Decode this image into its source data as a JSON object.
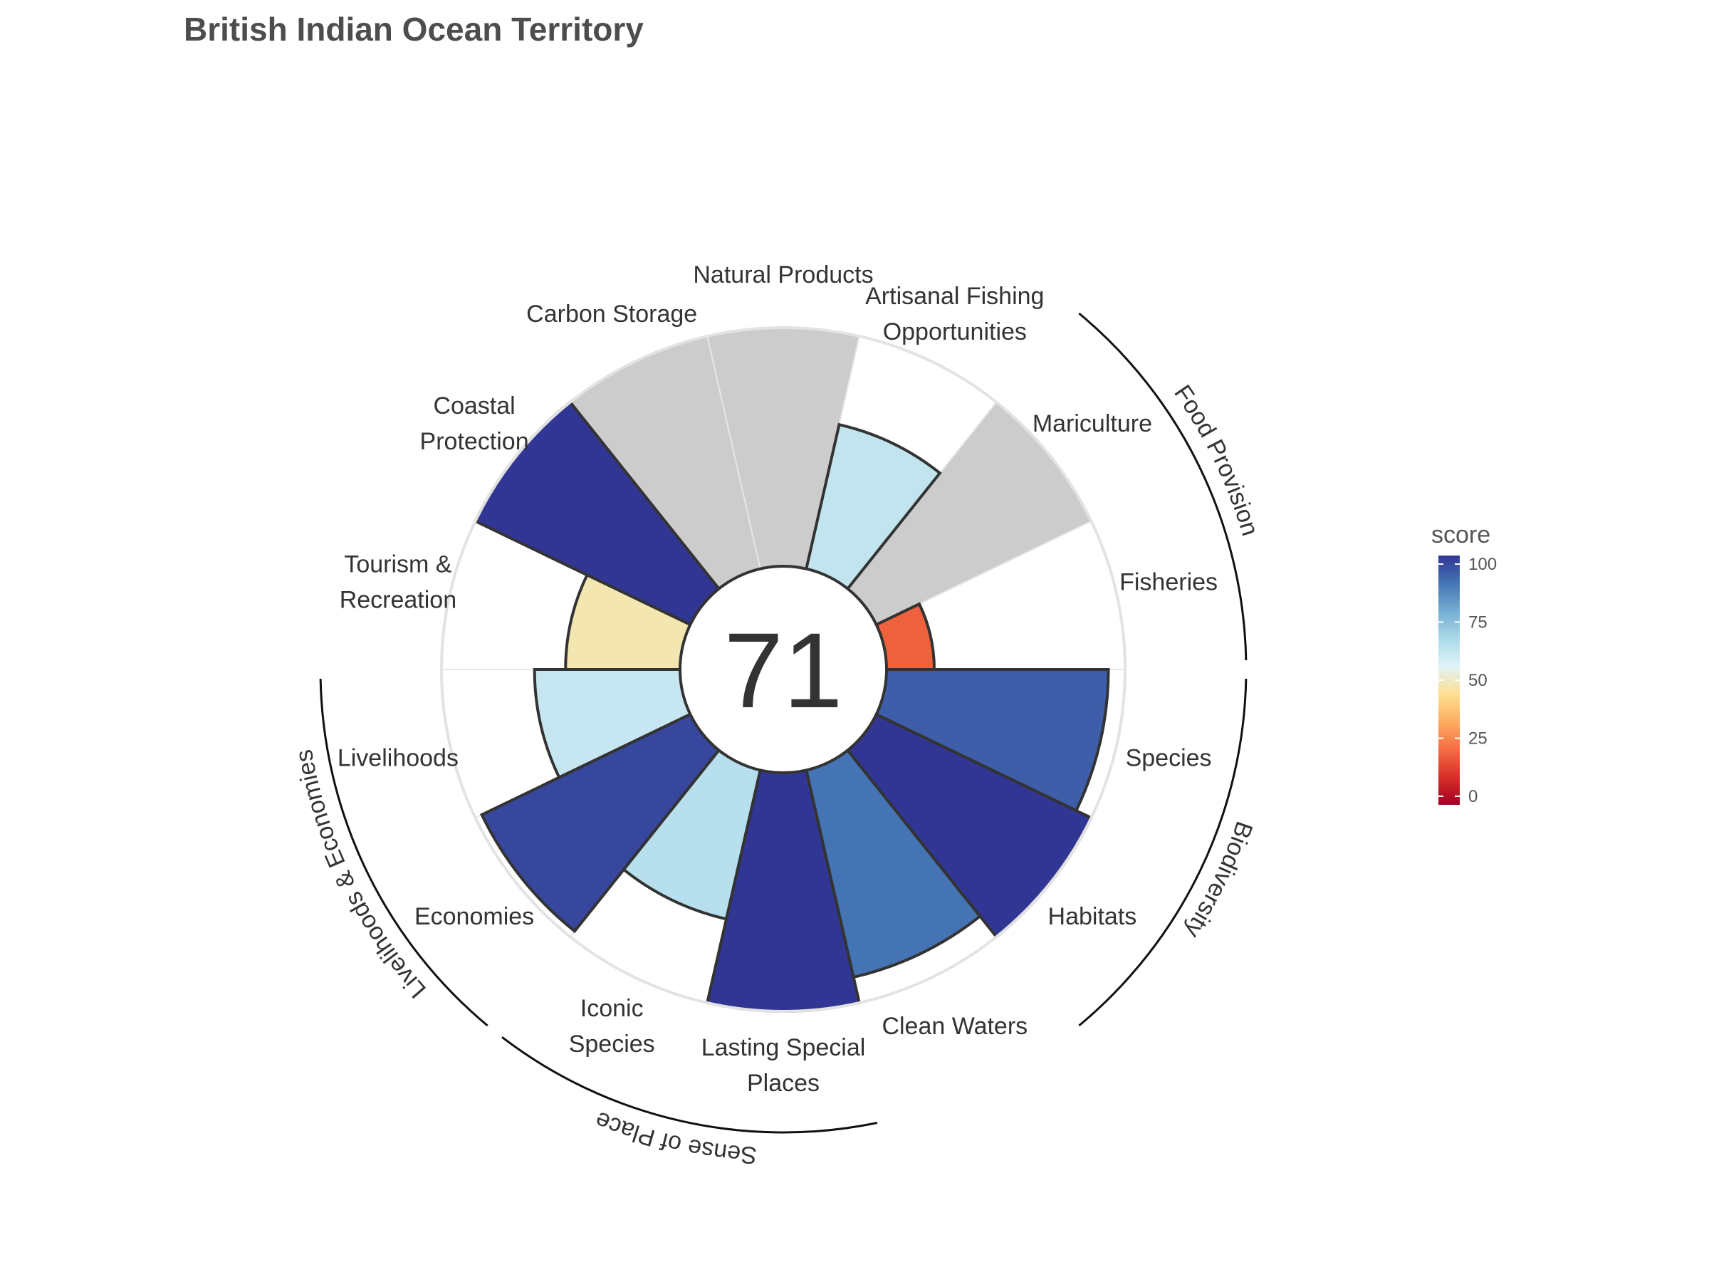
{
  "chart_data": {
    "type": "flower",
    "title": "British Indian Ocean Territory",
    "overall_score": "71",
    "ylim": [
      0,
      100
    ],
    "petals": [
      {
        "label": "Fisheries",
        "value": 20,
        "group": "Food Provision"
      },
      {
        "label": "Mariculture",
        "value": null,
        "group": "Food Provision"
      },
      {
        "label": "Artisanal Fishing Opportunities",
        "value": 62
      },
      {
        "label": "Natural Products",
        "value": null
      },
      {
        "label": "Carbon Storage",
        "value": null
      },
      {
        "label": "Coastal Protection",
        "value": 100
      },
      {
        "label": "Tourism & Recreation",
        "value": 48
      },
      {
        "label": "Livelihoods",
        "value": 61,
        "group": "Livelihoods & Economies"
      },
      {
        "label": "Economies",
        "value": 97,
        "group": "Livelihoods & Economies"
      },
      {
        "label": "Iconic Species",
        "value": 64,
        "group": "Sense of Place"
      },
      {
        "label": "Lasting Special Places",
        "value": 100,
        "group": "Sense of Place"
      },
      {
        "label": "Clean Waters",
        "value": 89
      },
      {
        "label": "Habitats",
        "value": 100,
        "group": "Biodiversity"
      },
      {
        "label": "Species",
        "value": 93,
        "group": "Biodiversity"
      }
    ],
    "groups": [
      "Food Provision",
      "Biodiversity",
      "Sense of Place",
      "Livelihoods & Economies"
    ],
    "legend": {
      "title": "score",
      "ticks": [
        "100",
        "75",
        "50",
        "25",
        "0"
      ],
      "position": "right",
      "colors": [
        "#a50026",
        "#d73027",
        "#f46d43",
        "#fdae61",
        "#fee090",
        "#e0f3f8",
        "#abd9e9",
        "#74add1",
        "#4575b4",
        "#313695"
      ]
    },
    "missing_color": "#cccccc",
    "grid": true
  }
}
